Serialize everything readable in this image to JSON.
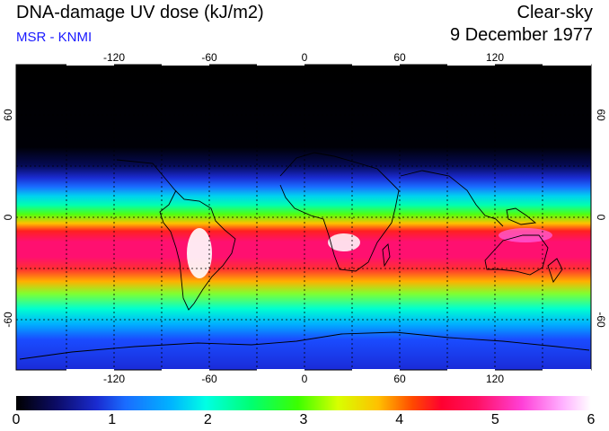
{
  "header": {
    "title": "DNA-damage UV dose (kJ/m2)",
    "subtitle": "MSR - KNMI",
    "sky_condition": "Clear-sky",
    "date": "9 December 1977"
  },
  "map": {
    "longitude_ticks": [
      "-120",
      "-60",
      "0",
      "60",
      "120"
    ],
    "latitude_ticks": [
      "60",
      "0",
      "-60"
    ],
    "longitude_values": [
      -120,
      -60,
      0,
      60,
      120
    ],
    "latitude_values": [
      60,
      0,
      -60
    ],
    "lon_range": [
      -180,
      180
    ],
    "lat_range": [
      -90,
      90
    ],
    "gridline_spacing_deg": 30,
    "gridline_style": "dotted"
  },
  "colorbar": {
    "ticks": [
      "0",
      "1",
      "2",
      "3",
      "4",
      "5",
      "6"
    ],
    "range": [
      0,
      6
    ],
    "unit": "kJ/m2"
  },
  "colors": {
    "subtitle": "#1a1aff",
    "background": "#ffffff"
  }
}
